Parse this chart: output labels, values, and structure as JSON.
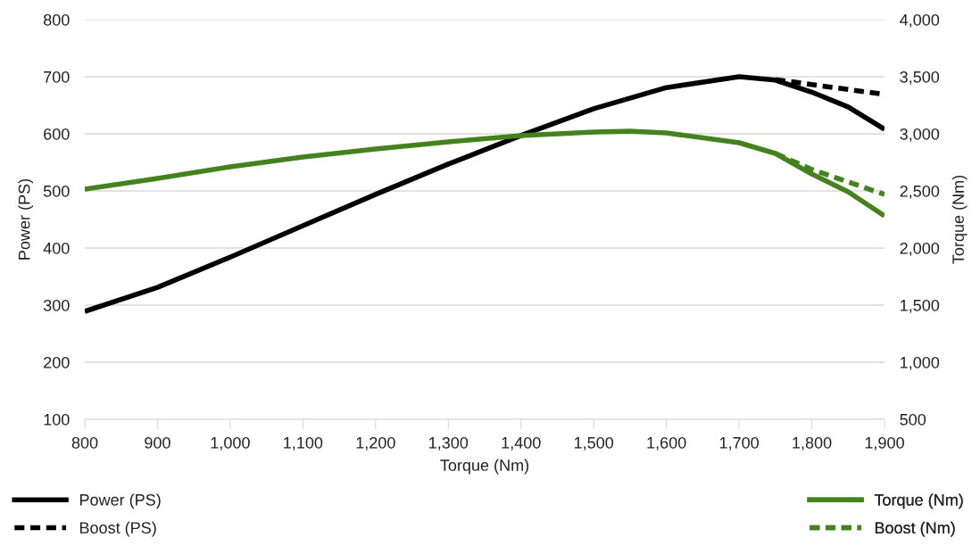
{
  "chart_data": {
    "type": "line",
    "xlabel": "Torque (Nm)",
    "ylabel": "Power (PS)",
    "y2label": "Torque (Nm)",
    "xlim": [
      800,
      1900
    ],
    "xticks": [
      800,
      900,
      {
        "value": 1000,
        "label": "1,000"
      },
      {
        "value": 1100,
        "label": "1,100"
      },
      {
        "value": 1200,
        "label": "1,200"
      },
      {
        "value": 1300,
        "label": "1,300"
      },
      {
        "value": 1400,
        "label": "1,400"
      },
      {
        "value": 1500,
        "label": "1,500"
      },
      {
        "value": 1600,
        "label": "1,600"
      },
      {
        "value": 1700,
        "label": "1,700"
      },
      {
        "value": 1800,
        "label": "1,800"
      },
      {
        "value": 1900,
        "label": "1,900"
      }
    ],
    "ylim": [
      100,
      800
    ],
    "yticks": [
      100,
      200,
      300,
      400,
      500,
      600,
      700,
      800
    ],
    "y2lim": [
      500,
      4000
    ],
    "y2ticks": [
      500,
      {
        "value": 1000,
        "label": "1,000"
      },
      {
        "value": 1500,
        "label": "1,500"
      },
      {
        "value": 2000,
        "label": "2,000"
      },
      {
        "value": 2500,
        "label": "2,500"
      },
      {
        "value": 3000,
        "label": "3,000"
      },
      {
        "value": 3500,
        "label": "3,500"
      },
      {
        "value": 4000,
        "label": "4,000"
      }
    ],
    "grid": "y",
    "legend": "bottom",
    "marker": "none",
    "series": [
      {
        "name": "Power (PS)",
        "color": "#000000",
        "line_style": "solid",
        "x": [
          800,
          900,
          1000,
          1100,
          1200,
          1300,
          1400,
          1500,
          1600,
          1700,
          1750,
          1800,
          1850,
          1900
        ],
        "values": [
          289,
          331,
          384,
          439,
          494,
          547,
          597,
          644,
          681,
          700,
          694,
          673,
          647,
          608
        ]
      },
      {
        "name": "Boost (PS)",
        "color": "#000000",
        "line_style": "dashed",
        "x": [
          1750,
          1900
        ],
        "values": [
          695,
          669
        ]
      },
      {
        "name": "Torque (Nm)",
        "color": "#43821c",
        "line_style": "solid",
        "axis": "y2",
        "x": [
          800,
          900,
          1000,
          1100,
          1200,
          1300,
          1400,
          1500,
          1550,
          1600,
          1700,
          1750,
          1800,
          1850,
          1900
        ],
        "values": [
          2516,
          2609,
          2711,
          2797,
          2867,
          2930,
          2984,
          3016,
          3023,
          3008,
          2922,
          2828,
          2648,
          2492,
          2281
        ]
      },
      {
        "name": "Boost (Nm)",
        "color": "#43821c",
        "line_style": "dashed",
        "axis": "y2",
        "x": [
          1750,
          1800,
          1900
        ],
        "values": [
          2828,
          2688,
          2469
        ]
      }
    ]
  }
}
